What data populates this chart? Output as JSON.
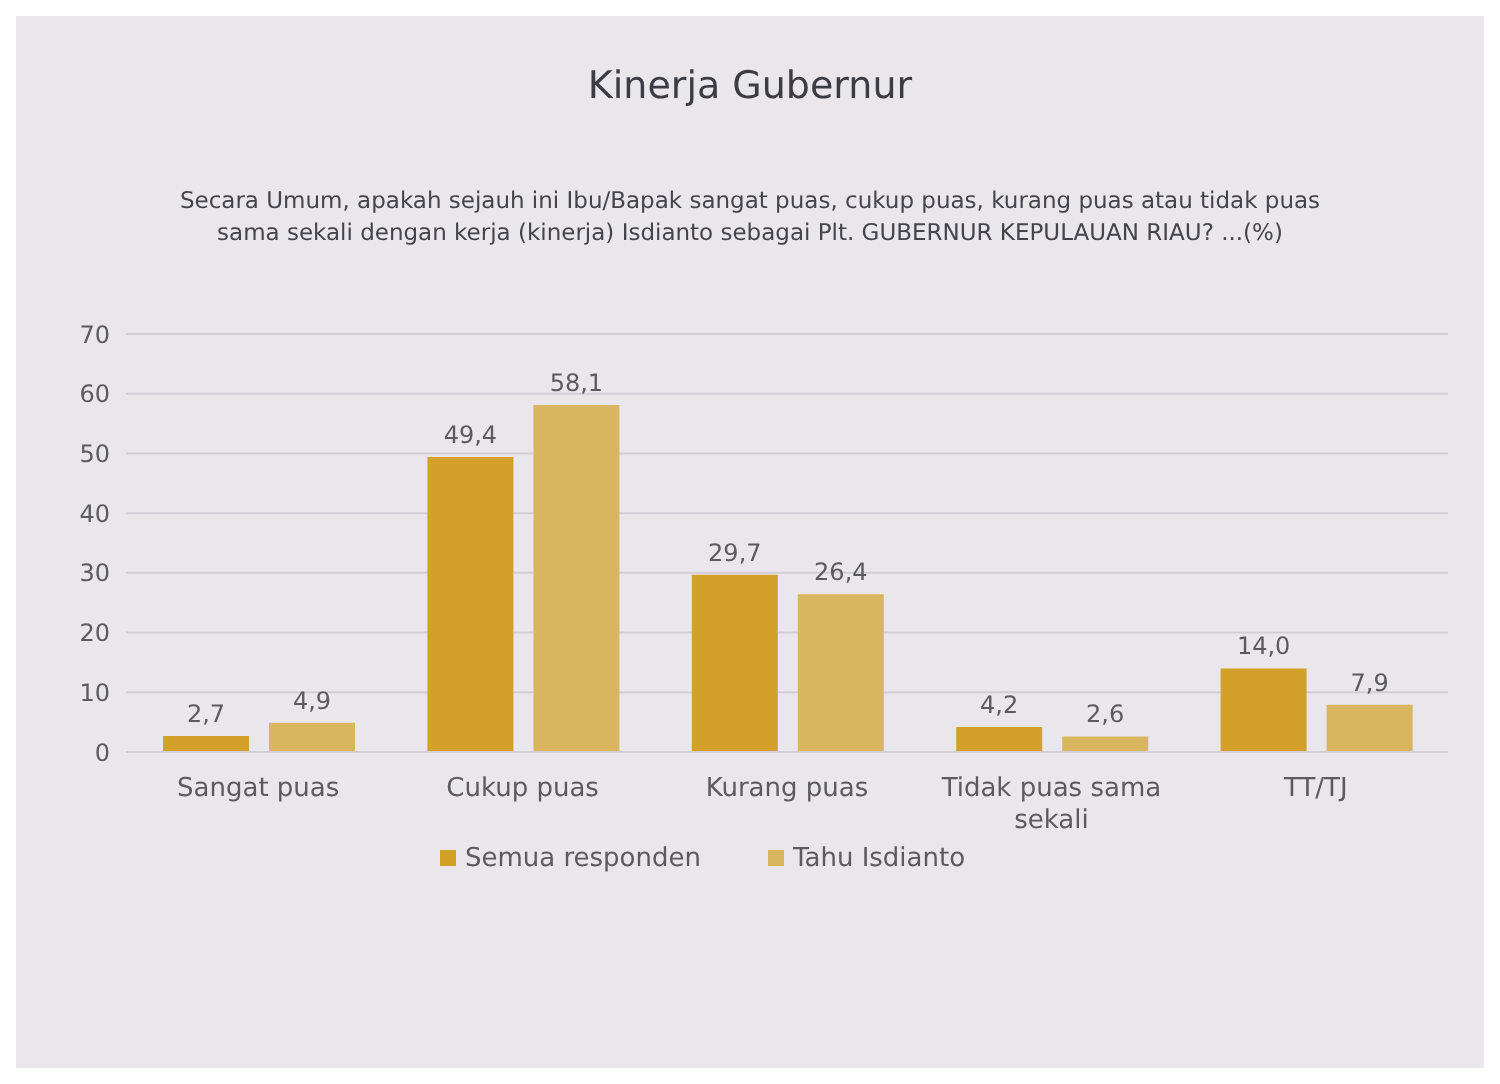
{
  "chart_data": {
    "type": "bar",
    "title": "Kinerja Gubernur",
    "subtitle": "Secara Umum, apakah sejauh ini Ibu/Bapak sangat puas, cukup puas, kurang puas atau tidak puas sama sekali dengan kerja (kinerja) Isdianto sebagai Plt. GUBERNUR KEPULAUAN RIAU? ...(%)",
    "categories": [
      "Sangat puas",
      "Cukup puas",
      "Kurang puas",
      "Tidak puas sama sekali",
      "TT/TJ"
    ],
    "series": [
      {
        "name": "Semua responden",
        "color": "#d3a02a",
        "values": [
          2.7,
          49.4,
          29.7,
          4.2,
          14.0
        ],
        "value_labels": [
          "2,7",
          "49,4",
          "29,7",
          "4,2",
          "14,0"
        ]
      },
      {
        "name": "Tahu Isdianto",
        "color": "#d9b560",
        "values": [
          4.9,
          58.1,
          26.4,
          2.6,
          7.9
        ],
        "value_labels": [
          "4,9",
          "58,1",
          "26,4",
          "2,6",
          "7,9"
        ]
      }
    ],
    "ylim": [
      0,
      70
    ],
    "yticks": [
      0,
      10,
      20,
      30,
      40,
      50,
      60,
      70
    ],
    "grid": "y",
    "legend": "bottom"
  }
}
